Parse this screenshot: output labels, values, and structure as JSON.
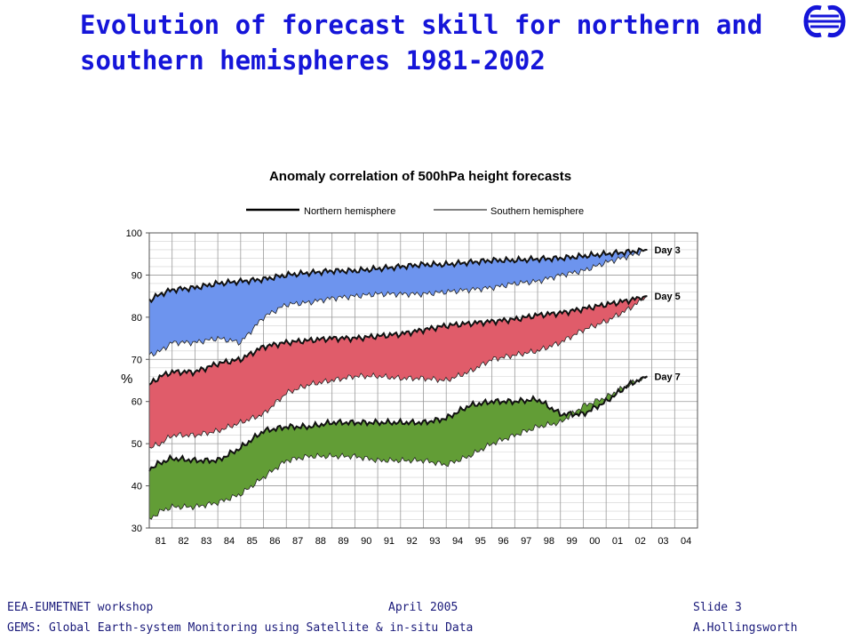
{
  "slide": {
    "title_line1": "Evolution of forecast skill for northern and",
    "title_line2": "southern hemispheres 1981-2002",
    "logo_icon": "ecmwf-logo-icon",
    "title_color": "#1515d9"
  },
  "footer": {
    "left_line1": "EEA-EUMETNET workshop",
    "center_line1": "April  2005",
    "right_line1": "Slide 3",
    "left_line2": "GEMS: Global Earth-system Monitoring using Satellite & in-situ Data",
    "right_line2": "A.Hollingsworth"
  },
  "chart_data": {
    "type": "area",
    "title": "Anomaly correlation of 500hPa height forecasts",
    "ylabel": "%",
    "xlabel": "",
    "ylim": [
      30,
      100
    ],
    "yticks": [
      30,
      40,
      50,
      60,
      70,
      80,
      90,
      100
    ],
    "xticks": [
      "81",
      "82",
      "83",
      "84",
      "85",
      "86",
      "87",
      "88",
      "89",
      "90",
      "91",
      "92",
      "93",
      "94",
      "95",
      "96",
      "97",
      "98",
      "99",
      "00",
      "01",
      "02",
      "03",
      "04"
    ],
    "xlim": [
      1981,
      2005
    ],
    "grid": true,
    "legend": [
      {
        "label": "Northern hemisphere",
        "style": "thick"
      },
      {
        "label": "Southern hemisphere",
        "style": "thin"
      }
    ],
    "series": [
      {
        "name": "Day 3",
        "color": "#6d94ee",
        "x": [
          1981.0,
          1981.5,
          1982.0,
          1983.0,
          1984.0,
          1985.0,
          1986.0,
          1987.0,
          1988.0,
          1989.0,
          1990.0,
          1991.0,
          1992.0,
          1993.0,
          1994.0,
          1995.0,
          1996.0,
          1997.0,
          1998.0,
          1999.0,
          2000.0,
          2001.0,
          2002.0,
          2002.8
        ],
        "northern": [
          84,
          85.5,
          86.5,
          87,
          88,
          88.5,
          89,
          90,
          90.5,
          91,
          91,
          91.5,
          92,
          92.5,
          92.5,
          93,
          93.5,
          93.5,
          93.8,
          94,
          94.5,
          95,
          95.5,
          96
        ],
        "southern": [
          71,
          72,
          74,
          74,
          75,
          74,
          80,
          83,
          83.5,
          84.5,
          85,
          85.5,
          85.5,
          85.5,
          86,
          86.5,
          87,
          88,
          88.5,
          90,
          91,
          93,
          94.5,
          96
        ]
      },
      {
        "name": "Day 5",
        "color": "#e05c6a",
        "x": [
          1981.0,
          1981.5,
          1982.0,
          1983.0,
          1984.0,
          1985.0,
          1986.0,
          1987.0,
          1988.0,
          1989.0,
          1990.0,
          1991.0,
          1992.0,
          1993.0,
          1994.0,
          1995.0,
          1996.0,
          1997.0,
          1998.0,
          1999.0,
          2000.0,
          2001.0,
          2002.0,
          2002.8
        ],
        "northern": [
          64,
          66,
          67,
          67,
          69,
          70,
          73,
          74,
          74.5,
          75,
          75,
          75.5,
          76,
          77,
          78,
          78.5,
          79,
          79.5,
          80.5,
          81,
          82,
          83,
          84,
          85
        ],
        "southern": [
          49,
          50,
          52,
          52,
          53,
          55,
          57,
          62,
          64,
          65,
          66,
          66,
          65.5,
          65.5,
          65,
          67,
          70,
          71,
          72,
          74,
          77,
          79,
          82,
          85
        ]
      },
      {
        "name": "Day 7",
        "color": "#629d36",
        "x": [
          1981.0,
          1981.5,
          1982.0,
          1983.0,
          1984.0,
          1985.0,
          1986.0,
          1987.0,
          1988.0,
          1989.0,
          1990.0,
          1991.0,
          1992.0,
          1993.0,
          1994.0,
          1995.0,
          1996.0,
          1997.0,
          1998.0,
          1999.0,
          2000.0,
          2001.0,
          2002.0,
          2002.8
        ],
        "northern": [
          44,
          45.5,
          46.5,
          46,
          46,
          49,
          53,
          54,
          54,
          55,
          55,
          55,
          55,
          55,
          56,
          59,
          60,
          60,
          60.5,
          57,
          57,
          60,
          64,
          66
        ],
        "southern": [
          32,
          34,
          35,
          35,
          36,
          38,
          42,
          46,
          47,
          47,
          47,
          46,
          46,
          46,
          45,
          47,
          50,
          52,
          54,
          55,
          59,
          61,
          64,
          66
        ]
      }
    ]
  }
}
